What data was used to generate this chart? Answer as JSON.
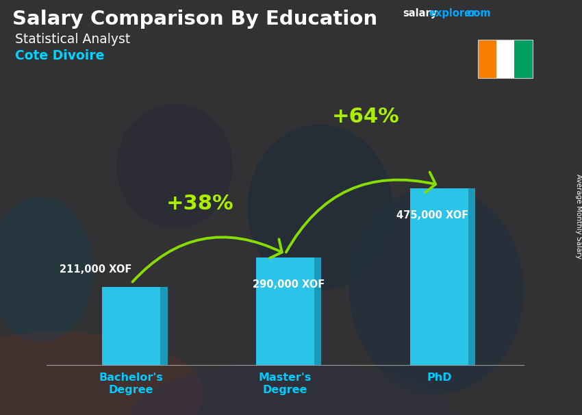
{
  "title_main": "Salary Comparison By Education",
  "subtitle1": "Statistical Analyst",
  "subtitle2": "Cote Divoire",
  "site_text1": "salary",
  "site_text2": "explorer",
  "site_text3": ".com",
  "ylabel": "Average Monthly Salary",
  "categories": [
    "Bachelor's\nDegree",
    "Master's\nDegree",
    "PhD"
  ],
  "values": [
    211000,
    290000,
    475000
  ],
  "value_labels": [
    "211,000 XOF",
    "290,000 XOF",
    "475,000 XOF"
  ],
  "pct_labels": [
    "+38%",
    "+64%"
  ],
  "bar_color": "#29c4e8",
  "bar_color_dark": "#1a9ab8",
  "bar_color_light": "#60d8f0",
  "bg_color": "#4a4a4a",
  "bg_overlay_alpha": 0.6,
  "title_color": "#ffffff",
  "subtitle1_color": "#ffffff",
  "subtitle2_color": "#00d4ff",
  "value_label_color": "#ffffff",
  "pct_color": "#aaee00",
  "arrow_color": "#88dd00",
  "site_color_salary": "#ffffff",
  "site_color_explorer": "#00aaff",
  "site_color_com": "#00aaff",
  "xtick_color": "#00ccff",
  "flag_orange": "#f77f00",
  "flag_white": "#ffffff",
  "flag_green": "#009e60",
  "ylim_max": 580000,
  "bar_width": 0.38,
  "bar_positions": [
    0,
    1,
    2
  ],
  "xlim": [
    -0.55,
    2.55
  ]
}
